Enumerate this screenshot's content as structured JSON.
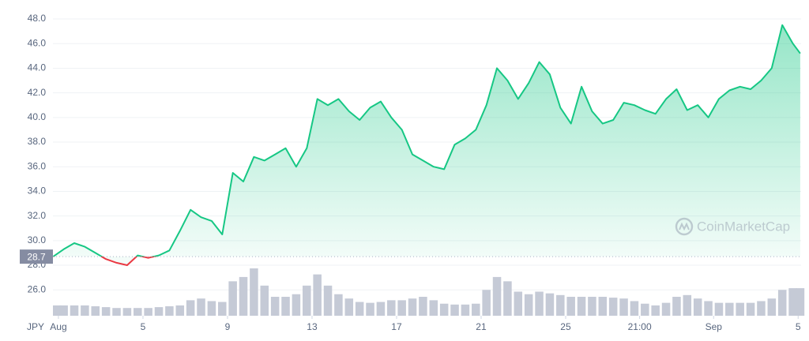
{
  "chart_data": {
    "type": "line",
    "currency": "JPY",
    "watermark": "CoinMarketCap",
    "baseline": 28.7,
    "color": "#16c784",
    "below_color": "#ea3943",
    "volume_color": "#c5cad6",
    "grid": true,
    "xlim": [
      0.74,
      36.14
    ],
    "xticks": [
      {
        "value": 1,
        "label": "Aug"
      },
      5,
      9,
      13,
      17,
      21,
      25,
      {
        "value": 28.5,
        "label": "21:00"
      },
      {
        "value": 32,
        "label": "Sep"
      },
      {
        "value": 36,
        "label": "5"
      }
    ],
    "ylim": [
      23.9,
      48.9
    ],
    "yticks": [
      {
        "value": 26,
        "label": "26.0"
      },
      {
        "value": 28,
        "label": "28.0"
      },
      {
        "value": 30,
        "label": "30.0"
      },
      {
        "value": 32,
        "label": "32.0"
      },
      {
        "value": 34,
        "label": "34.0"
      },
      {
        "value": 36,
        "label": "36.0"
      },
      {
        "value": 38,
        "label": "38.0"
      },
      {
        "value": 40,
        "label": "40.0"
      },
      {
        "value": 42,
        "label": "42.0"
      },
      {
        "value": 44,
        "label": "44.0"
      },
      {
        "value": 46,
        "label": "46.0"
      },
      {
        "value": 48,
        "label": "48.0"
      }
    ],
    "x": [
      0.75,
      1.25,
      1.75,
      2.25,
      2.75,
      3.25,
      3.75,
      4.25,
      4.75,
      5.25,
      5.75,
      6.25,
      6.75,
      7.25,
      7.75,
      8.25,
      8.75,
      9.25,
      9.75,
      10.25,
      10.75,
      11.25,
      11.75,
      12.25,
      12.75,
      13.25,
      13.75,
      14.25,
      14.75,
      15.25,
      15.75,
      16.25,
      16.75,
      17.25,
      17.75,
      18.25,
      18.75,
      19.25,
      19.75,
      20.25,
      20.75,
      21.25,
      21.75,
      22.25,
      22.75,
      23.25,
      23.75,
      24.25,
      24.75,
      25.25,
      25.75,
      26.25,
      26.75,
      27.25,
      27.75,
      28.25,
      28.75,
      29.25,
      29.75,
      30.25,
      30.75,
      31.25,
      31.75,
      32.25,
      32.75,
      33.25,
      33.75,
      34.25,
      34.75,
      35.25,
      35.75,
      36.1
    ],
    "values": [
      28.7,
      29.3,
      29.8,
      29.5,
      29.0,
      28.5,
      28.2,
      28.0,
      28.8,
      28.6,
      28.8,
      29.2,
      30.8,
      32.5,
      31.9,
      31.6,
      30.5,
      35.5,
      34.8,
      36.8,
      36.5,
      37.0,
      37.5,
      36.0,
      37.5,
      41.5,
      41.0,
      41.5,
      40.5,
      39.8,
      40.8,
      41.3,
      40.0,
      39.0,
      37.0,
      36.5,
      36.0,
      35.8,
      37.8,
      38.3,
      39.0,
      41.0,
      44.0,
      43.0,
      41.5,
      42.8,
      44.5,
      43.5,
      40.8,
      39.5,
      42.5,
      40.5,
      39.5,
      39.8,
      41.2,
      41.0,
      40.6,
      40.3,
      41.5,
      42.3,
      40.6,
      41.0,
      40.0,
      41.5,
      42.2,
      42.5,
      42.3,
      43.0,
      44.0,
      47.5,
      46.0,
      45.2
    ],
    "volume": [
      12,
      12,
      12,
      12,
      11,
      10,
      9,
      9,
      9,
      9,
      10,
      11,
      12,
      18,
      20,
      17,
      16,
      40,
      45,
      55,
      35,
      22,
      22,
      25,
      35,
      48,
      35,
      25,
      20,
      16,
      15,
      16,
      18,
      18,
      20,
      22,
      18,
      14,
      13,
      13,
      14,
      30,
      45,
      40,
      28,
      25,
      28,
      26,
      24,
      22,
      22,
      22,
      22,
      21,
      20,
      17,
      14,
      12,
      15,
      22,
      24,
      20,
      17,
      15,
      15,
      15,
      15,
      17,
      20,
      30,
      32,
      32
    ]
  }
}
